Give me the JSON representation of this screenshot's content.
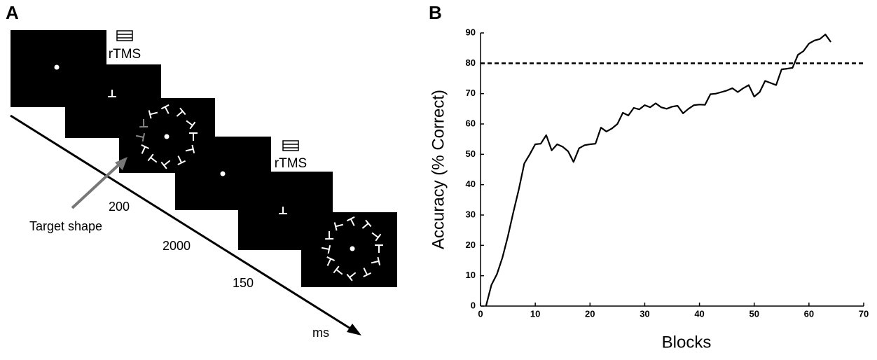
{
  "panel_a": {
    "label": "A",
    "rtms_labels": [
      "rTMS",
      "rTMS"
    ],
    "target_label": "Target shape",
    "durations": [
      "200",
      "2000",
      "150"
    ],
    "time_unit": "ms"
  },
  "chart_data": {
    "type": "line",
    "panel_label": "B",
    "xlabel": "Blocks",
    "ylabel": "Accuracy (% Correct)",
    "x": [
      1,
      2,
      3,
      4,
      5,
      6,
      7,
      8,
      9,
      10,
      11,
      12,
      13,
      14,
      15,
      16,
      17,
      18,
      19,
      20,
      21,
      22,
      23,
      24,
      25,
      26,
      27,
      28,
      29,
      30,
      31,
      32,
      33,
      34,
      35,
      36,
      37,
      38,
      39,
      40,
      41,
      42,
      43,
      44,
      45,
      46,
      47,
      48,
      49,
      50,
      51,
      52,
      53,
      54,
      55,
      56,
      57,
      58,
      59,
      60,
      61,
      62,
      63,
      64
    ],
    "values": [
      0,
      7,
      10.5,
      16,
      23,
      31,
      38.5,
      47,
      50,
      53.3,
      53.5,
      56.3,
      51.3,
      53.3,
      52.5,
      51,
      47.5,
      52,
      53,
      53.3,
      53.5,
      58.8,
      57.5,
      58.5,
      60,
      63.7,
      62.8,
      65.3,
      64.8,
      66.2,
      65.5,
      66.8,
      65.5,
      65,
      65.7,
      66,
      63.5,
      65,
      66.2,
      66.4,
      66.3,
      69.8,
      70,
      70.5,
      71,
      71.8,
      70.5,
      71.8,
      72.8,
      69,
      70.5,
      74.2,
      73.5,
      72.8,
      78,
      78.2,
      78.5,
      82.8,
      84,
      86.5,
      87.5,
      88,
      89.5,
      87
    ],
    "color": "#000000",
    "hline": 80,
    "xlim": [
      0,
      70
    ],
    "xticks": [
      0,
      10,
      20,
      30,
      40,
      50,
      60,
      70
    ],
    "ylim": [
      0,
      90
    ],
    "yticks": [
      0,
      10,
      20,
      30,
      40,
      50,
      60,
      70,
      80,
      90
    ]
  }
}
